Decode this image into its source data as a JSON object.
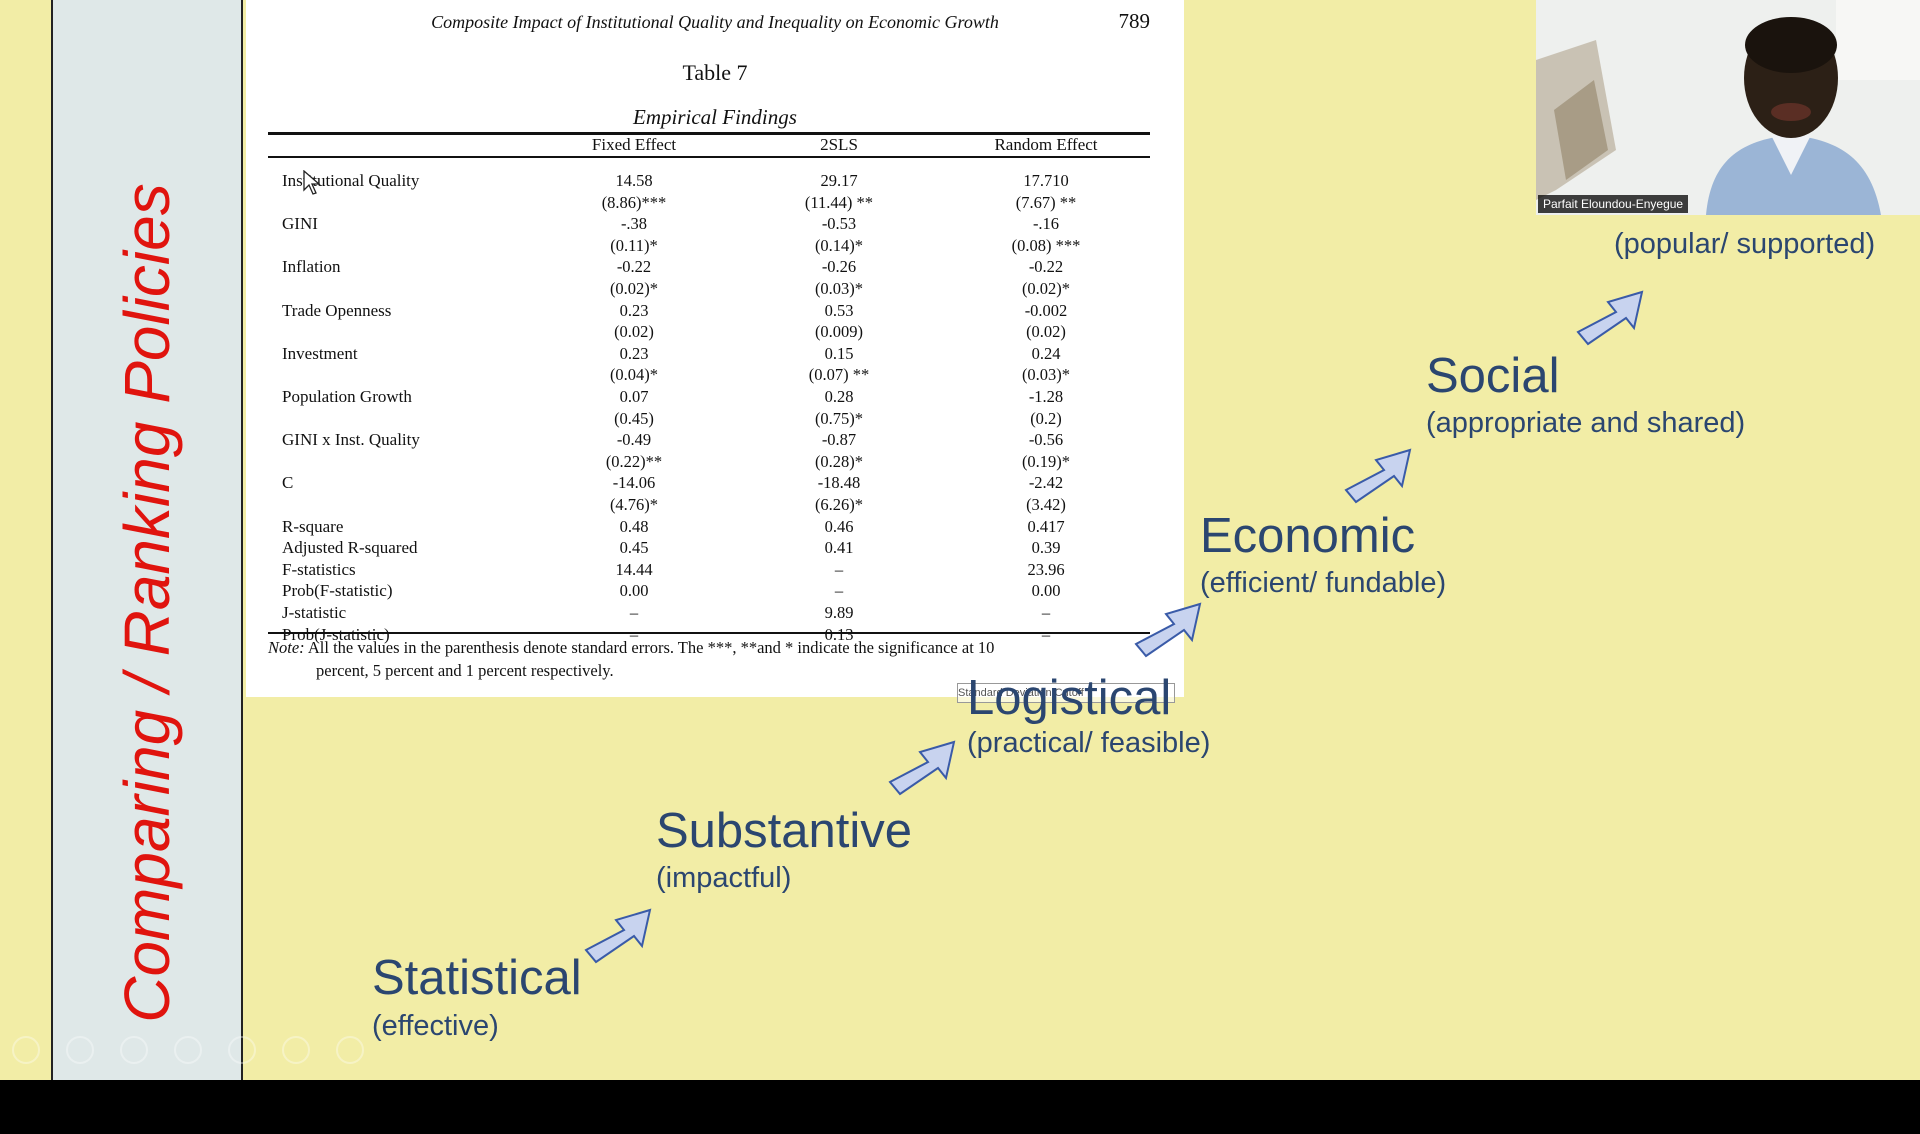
{
  "slide": {
    "vertical_title": "Comparing / Ranking Policies",
    "colors": {
      "background": "#f2eda6",
      "title_red": "#e0140e",
      "step_blue": "#2b4670",
      "arrow_fill": "#c8d3ef",
      "arrow_stroke": "#3a5ba8"
    }
  },
  "paper": {
    "running_head": "Composite Impact of Institutional Quality and Inequality on Economic Growth",
    "page_number": "789",
    "table_title": "Table 7",
    "table_subtitle": "Empirical Findings",
    "columns": [
      "Fixed Effect",
      "2SLS",
      "Random Effect"
    ],
    "rows": [
      {
        "label": "Institutional Quality",
        "values": [
          "14.58",
          "29.17",
          "17.710"
        ]
      },
      {
        "label": "",
        "values": [
          "(8.86)***",
          "(11.44) **",
          "(7.67) **"
        ]
      },
      {
        "label": "GINI",
        "values": [
          "-.38",
          "-0.53",
          "-.16"
        ]
      },
      {
        "label": "",
        "values": [
          "(0.11)*",
          "(0.14)*",
          "(0.08) ***"
        ]
      },
      {
        "label": "Inflation",
        "values": [
          "-0.22",
          "-0.26",
          "-0.22"
        ]
      },
      {
        "label": "",
        "values": [
          "(0.02)*",
          "(0.03)*",
          "(0.02)*"
        ]
      },
      {
        "label": "Trade Openness",
        "values": [
          "0.23",
          "0.53",
          "-0.002"
        ]
      },
      {
        "label": "",
        "values": [
          "(0.02)",
          "(0.009)",
          "(0.02)"
        ]
      },
      {
        "label": "Investment",
        "values": [
          "0.23",
          "0.15",
          "0.24"
        ]
      },
      {
        "label": "",
        "values": [
          "(0.04)*",
          "(0.07) **",
          "(0.03)*"
        ]
      },
      {
        "label": "Population Growth",
        "values": [
          "0.07",
          "0.28",
          "-1.28"
        ]
      },
      {
        "label": "",
        "values": [
          "(0.45)",
          "(0.75)*",
          "(0.2)"
        ]
      },
      {
        "label": "GINI x Inst. Quality",
        "values": [
          "-0.49",
          "-0.87",
          "-0.56"
        ]
      },
      {
        "label": "",
        "values": [
          "(0.22)**",
          "(0.28)*",
          "(0.19)*"
        ]
      },
      {
        "label": "C",
        "values": [
          "-14.06",
          "-18.48",
          "-2.42"
        ]
      },
      {
        "label": "",
        "values": [
          "(4.76)*",
          "(6.26)*",
          "(3.42)"
        ]
      },
      {
        "label": "R-square",
        "values": [
          "0.48",
          "0.46",
          "0.417"
        ]
      },
      {
        "label": "Adjusted R-squared",
        "values": [
          "0.45",
          "0.41",
          "0.39"
        ]
      },
      {
        "label": "F-statistics",
        "values": [
          "14.44",
          "–",
          "23.96"
        ]
      },
      {
        "label": "Prob(F-statistic)",
        "values": [
          "0.00",
          "–",
          "0.00"
        ]
      },
      {
        "label": "J-statistic",
        "values": [
          "–",
          "9.89",
          "–"
        ]
      },
      {
        "label": "Prob(J-statistic)",
        "values": [
          "–",
          "0.13",
          "–"
        ]
      }
    ],
    "note_label": "Note:",
    "note_line1": "All the values in the parenthesis denote standard errors. The ***, **and * indicate the significance at 10",
    "note_line2": "percent, 5 percent and 1 percent respectively.",
    "stamp_text": "Standard Deviation Cutoff"
  },
  "steps": [
    {
      "title": "Statistical",
      "subtitle": "(effective)"
    },
    {
      "title": "Substantive",
      "subtitle": "(impactful)"
    },
    {
      "title": "Logistical",
      "subtitle": "(practical/ feasible)"
    },
    {
      "title": "Economic",
      "subtitle": "(efficient/ fundable)"
    },
    {
      "title": "Social",
      "subtitle": "(appropriate and shared)"
    },
    {
      "title": "",
      "subtitle": "(popular/ supported)"
    }
  ],
  "video": {
    "participant_name": "Parfait Eloundou-Enyegue"
  }
}
